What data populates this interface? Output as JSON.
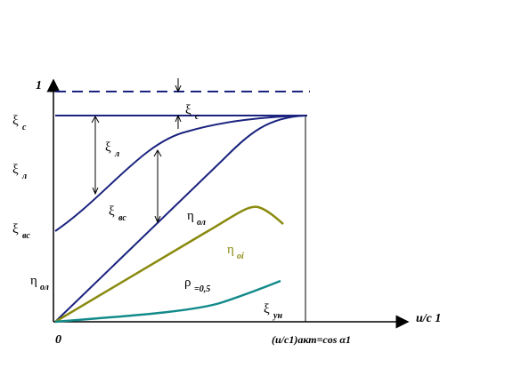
{
  "axes": {
    "y_one": "1",
    "origin": "0",
    "x_axis": "u/c 1",
    "x_mark": "(u/c1)акт=cos α1"
  },
  "left_labels": [
    {
      "symbol": "ξ",
      "sub": "с"
    },
    {
      "symbol": "ξ",
      "sub": "л"
    },
    {
      "symbol": "ξ",
      "sub": "вс"
    },
    {
      "symbol": "η",
      "sub": "ол"
    }
  ],
  "curve_labels": {
    "xi_c": {
      "symbol": "ξ",
      "sub": "с"
    },
    "xi_l": {
      "symbol": "ξ",
      "sub": "л"
    },
    "xi_vs": {
      "symbol": "ξ",
      "sub": "вс"
    },
    "eta_ol": {
      "symbol": "η",
      "sub": "ол"
    },
    "eta_oi": {
      "symbol": "η",
      "sub": "oi"
    },
    "rho": {
      "symbol": "ρ",
      "sub": "=0,5"
    },
    "xi_un": {
      "symbol": "ξ",
      "sub": "ун"
    }
  }
}
